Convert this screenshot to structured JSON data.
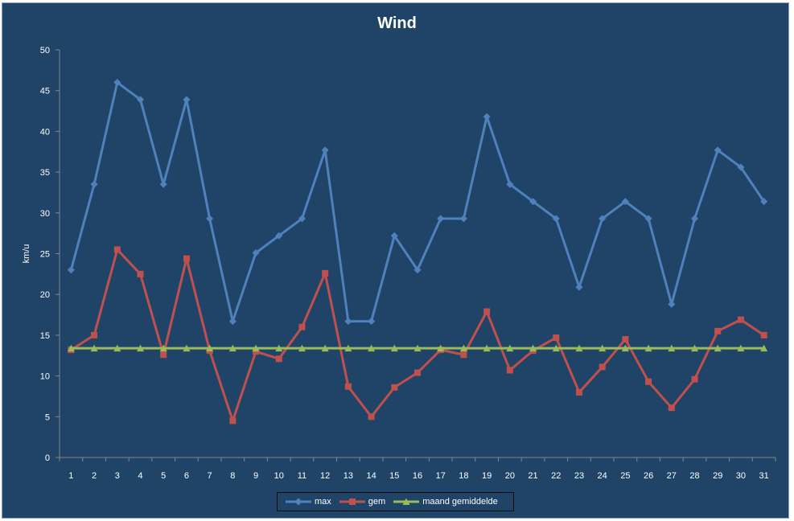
{
  "chart_data": {
    "type": "line",
    "title": "Wind",
    "ylabel": "km/u",
    "xlabel": "",
    "ylim": [
      0,
      50
    ],
    "yticks": [
      0,
      5,
      10,
      15,
      20,
      25,
      30,
      35,
      40,
      45,
      50
    ],
    "categories": [
      "1",
      "2",
      "3",
      "4",
      "5",
      "6",
      "7",
      "8",
      "9",
      "10",
      "11",
      "12",
      "13",
      "14",
      "15",
      "16",
      "17",
      "18",
      "19",
      "20",
      "21",
      "22",
      "23",
      "24",
      "25",
      "26",
      "27",
      "28",
      "29",
      "30",
      "31"
    ],
    "grid": false,
    "legend_position": "bottom",
    "series": [
      {
        "name": "max",
        "color": "#4f81bd",
        "marker": "diamond",
        "values": [
          23.0,
          33.5,
          46.0,
          43.9,
          33.5,
          43.9,
          29.3,
          16.7,
          25.1,
          27.2,
          29.3,
          37.7,
          16.7,
          16.7,
          27.2,
          23.0,
          29.3,
          29.3,
          41.8,
          33.5,
          31.4,
          29.3,
          20.9,
          29.3,
          31.4,
          29.3,
          18.8,
          29.3,
          37.7,
          35.6,
          31.4
        ]
      },
      {
        "name": "gem",
        "color": "#c0504d",
        "marker": "square",
        "values": [
          13.2,
          15.0,
          25.5,
          22.5,
          12.6,
          24.4,
          13.1,
          4.5,
          13.0,
          12.1,
          16.0,
          22.6,
          8.7,
          5.0,
          8.6,
          10.4,
          13.2,
          12.6,
          17.9,
          10.7,
          13.1,
          14.7,
          8.0,
          11.1,
          14.5,
          9.3,
          6.1,
          9.6,
          15.5,
          16.9,
          15.0
        ]
      },
      {
        "name": "maand gemiddelde",
        "color": "#9bbb59",
        "marker": "triangle",
        "values": [
          13.4,
          13.4,
          13.4,
          13.4,
          13.4,
          13.4,
          13.4,
          13.4,
          13.4,
          13.4,
          13.4,
          13.4,
          13.4,
          13.4,
          13.4,
          13.4,
          13.4,
          13.4,
          13.4,
          13.4,
          13.4,
          13.4,
          13.4,
          13.4,
          13.4,
          13.4,
          13.4,
          13.4,
          13.4,
          13.4,
          13.4
        ]
      }
    ]
  }
}
